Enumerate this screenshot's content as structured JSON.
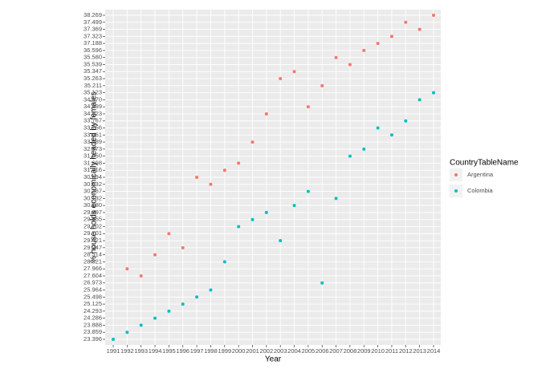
{
  "chart_data": {
    "type": "scatter",
    "x_label": "Year",
    "y_label": "% house holds economically headed by females",
    "legend_title": "CountryTableName",
    "legend_position": "right",
    "y_scale": "discrete",
    "grid": true,
    "xlim": [
      1991,
      2014
    ],
    "xticks": [
      1991,
      1992,
      1993,
      1994,
      1995,
      1996,
      1997,
      1998,
      1999,
      2000,
      2001,
      2002,
      2003,
      2004,
      2005,
      2006,
      2007,
      2008,
      2009,
      2010,
      2011,
      2012,
      2013,
      2014
    ],
    "yticks": [
      23.396,
      23.859,
      23.888,
      24.286,
      24.293,
      25.125,
      25.498,
      25.964,
      26.973,
      27.604,
      27.966,
      28.321,
      28.514,
      29.247,
      29.421,
      29.701,
      29.702,
      29.855,
      29.997,
      {
        "value": 30.08,
        "label": "30.080"
      },
      30.132,
      30.267,
      30.632,
      30.694,
      31.416,
      31.698,
      {
        "value": 31.95,
        "label": "31.950"
      },
      32.873,
      33.089,
      33.461,
      33.756,
      33.767,
      34.423,
      34.899,
      {
        "value": 34.97,
        "label": "34.970"
      },
      35.123,
      35.211,
      35.263,
      35.347,
      35.539,
      {
        "value": 35.58,
        "label": "35.580"
      },
      36.596,
      37.188,
      37.323,
      37.369,
      37.499,
      38.269
    ],
    "series": [
      {
        "name": "Argentina",
        "color": "#f8766d",
        "x": [
          1992,
          1993,
          1994,
          1995,
          1996,
          1997,
          1998,
          1999,
          2000,
          2001,
          2002,
          2003,
          2004,
          2005,
          2006,
          2007,
          2008,
          2009,
          2010,
          2011,
          2012,
          2013,
          2014
        ],
        "values": [
          27.966,
          27.604,
          28.514,
          29.701,
          29.247,
          30.694,
          30.632,
          31.416,
          31.698,
          33.089,
          34.423,
          35.263,
          35.347,
          34.899,
          35.211,
          35.58,
          35.539,
          36.596,
          37.188,
          37.323,
          37.499,
          37.369,
          38.269
        ]
      },
      {
        "name": "Colombia",
        "color": "#00bfc4",
        "x": [
          1991,
          1992,
          1993,
          1994,
          1995,
          1996,
          1997,
          1998,
          1999,
          2000,
          2001,
          2002,
          2003,
          2004,
          2005,
          2006,
          2007,
          2008,
          2009,
          2010,
          2011,
          2012,
          2013,
          2014
        ],
        "values": [
          23.396,
          23.859,
          23.888,
          24.286,
          24.293,
          25.125,
          25.498,
          25.964,
          28.321,
          29.702,
          29.855,
          29.997,
          29.421,
          30.08,
          30.267,
          26.973,
          30.132,
          31.95,
          32.873,
          33.756,
          33.461,
          33.767,
          34.97,
          35.123
        ]
      }
    ]
  }
}
